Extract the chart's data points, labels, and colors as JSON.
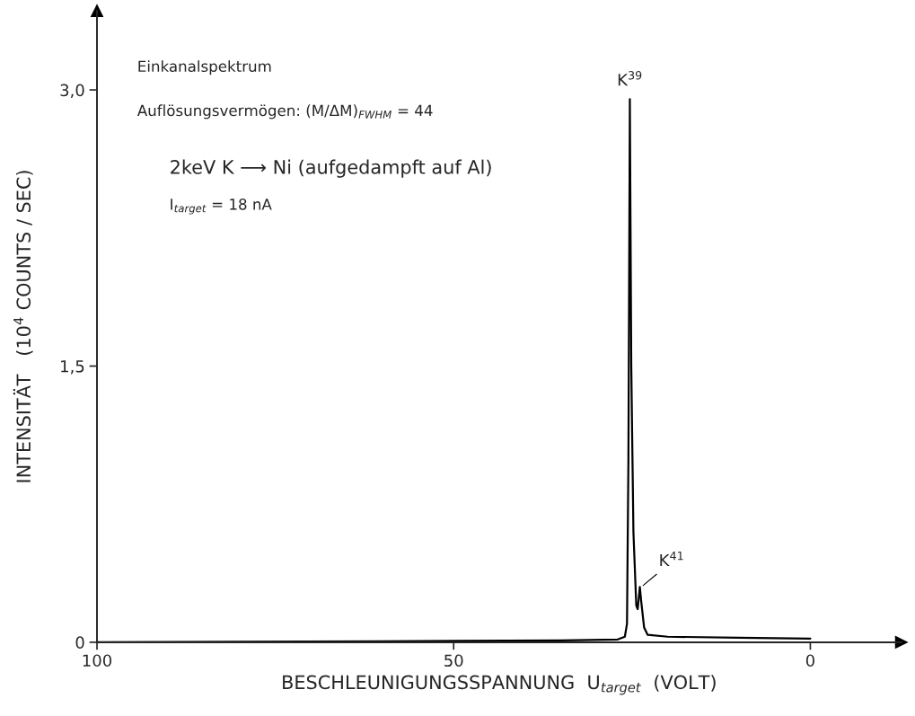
{
  "chart_data": {
    "type": "line",
    "xlabel": "BESCHLEUNIGUNGSSPANNUNG  U$_{target}$  (VOLT)",
    "ylabel": "INTENSITÄT   (10$^{4}$ COUNTS / SEC)",
    "x": [
      100,
      60,
      35,
      27,
      26,
      25.7,
      25.5,
      25.3,
      25.1,
      24.8,
      24.4,
      24.2,
      23.9,
      23.7,
      23.3,
      22.8,
      20,
      10,
      0
    ],
    "series": [
      {
        "color": "#000000",
        "values": [
          0,
          0.005,
          0.01,
          0.015,
          0.03,
          0.1,
          1.0,
          2.95,
          1.5,
          0.6,
          0.2,
          0.18,
          0.3,
          0.22,
          0.08,
          0.04,
          0.03,
          0.025,
          0.02
        ]
      }
    ],
    "xlim": [
      100,
      -12.75
    ],
    "ylim": [
      0,
      3.43
    ],
    "xticks": [
      100,
      50,
      0
    ],
    "yticks": [
      0,
      {
        "value": 1.5,
        "label": "1,5"
      },
      {
        "value": 3,
        "label": "3,0"
      }
    ],
    "grid": false,
    "legend": false,
    "marker": "none",
    "line_style": "solid",
    "annotations": [
      {
        "text": "K$^{39}$",
        "x": 25.3,
        "y": 2.95
      },
      {
        "text": "K$^{41}$",
        "x": 23.7,
        "y": 0.3
      },
      "Einkanalspektrum",
      "Auflösungsvermögen: (M/ΔM)$_{FWHM}$ = 44",
      "2keV K ⟶ Ni (aufgedampft auf Al)",
      "I$_{target}$ = 18 nA"
    ]
  }
}
